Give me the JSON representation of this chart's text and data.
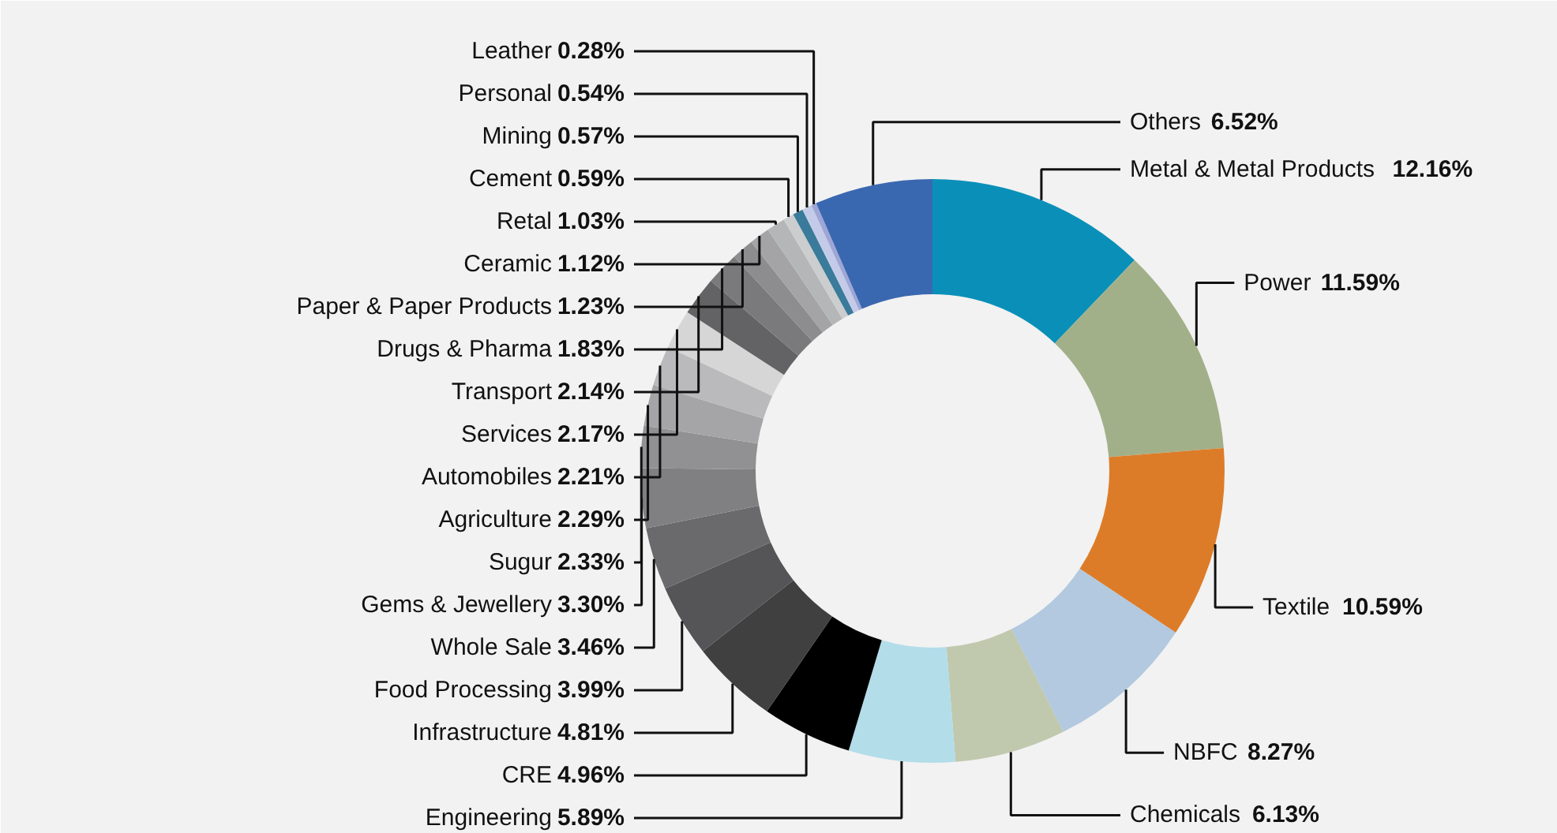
{
  "chart_data": {
    "type": "donut",
    "categories": [
      "Metal & Metal Products",
      "Power",
      "Textile",
      "NBFC",
      "Chemicals",
      "Engineering",
      "CRE",
      "Infrastructure",
      "Food Processing",
      "Whole Sale",
      "Gems & Jewellery",
      "Sugur",
      "Agriculture",
      "Automobiles",
      "Services",
      "Transport",
      "Drugs & Pharma",
      "Paper & Paper Products",
      "Ceramic",
      "Retal",
      "Cement",
      "Mining",
      "Personal",
      "Leather",
      "Others"
    ],
    "values": [
      12.16,
      11.59,
      10.59,
      8.27,
      6.13,
      5.89,
      4.96,
      4.81,
      3.99,
      3.46,
      3.3,
      2.33,
      2.29,
      2.21,
      2.17,
      2.14,
      1.83,
      1.23,
      1.12,
      1.03,
      0.59,
      0.57,
      0.54,
      0.28,
      6.52
    ],
    "colors": [
      "#0a90b8",
      "#a2b08a",
      "#dd7c28",
      "#b2c9e0",
      "#c0c8ae",
      "#b3dde9",
      "#000000",
      "#404040",
      "#555557",
      "#6a6a6c",
      "#808082",
      "#919193",
      "#a5a5a7",
      "#bababc",
      "#d6d6d6",
      "#636365",
      "#7a7a7c",
      "#8d8d8f",
      "#a4a4a6",
      "#b4b6b8",
      "#cbcdce",
      "#3a7a9a",
      "#c4cbe8",
      "#9ea6d6",
      "#3a68b0"
    ],
    "value_labels": [
      "12.16%",
      "11.59%",
      "10.59%",
      "8.27%",
      "6.13%",
      "5.89%",
      "4.96%",
      "4.81%",
      "3.99%",
      "3.46%",
      "3.30%",
      "2.33%",
      "2.29%",
      "2.21%",
      "2.17%",
      "2.14%",
      "1.83%",
      "1.23%",
      "1.12%",
      "1.03%",
      "0.59%",
      "0.57%",
      "0.54%",
      "0.28%",
      "6.52%"
    ]
  }
}
